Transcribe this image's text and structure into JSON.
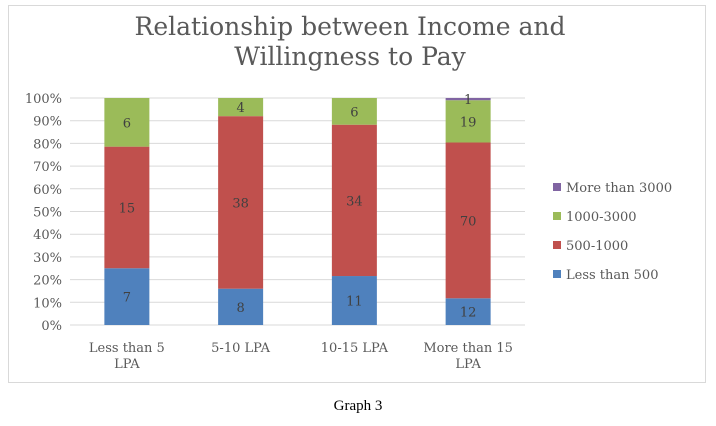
{
  "chart_data": {
    "type": "bar",
    "stacked": "percent",
    "title": "Relationship between Income and Willingness to Pay",
    "categories": [
      "Less than 5 LPA",
      "5-10 LPA",
      "10-15 LPA",
      "More than 15 LPA"
    ],
    "series": [
      {
        "name": "Less than 500",
        "values": [
          7,
          8,
          11,
          12
        ],
        "color": "#4f81bd"
      },
      {
        "name": "500-1000",
        "values": [
          15,
          38,
          34,
          70
        ],
        "color": "#c0504d"
      },
      {
        "name": "1000-3000",
        "values": [
          6,
          4,
          6,
          19
        ],
        "color": "#9bbb59"
      },
      {
        "name": "More than 3000",
        "values": [
          0,
          0,
          0,
          1
        ],
        "color": "#8064a2"
      }
    ],
    "y_ticks": [
      "0%",
      "10%",
      "20%",
      "30%",
      "40%",
      "50%",
      "60%",
      "70%",
      "80%",
      "90%",
      "100%"
    ],
    "ylim": [
      0,
      100
    ],
    "grid": true,
    "legend": "right"
  },
  "caption": "Graph 3"
}
